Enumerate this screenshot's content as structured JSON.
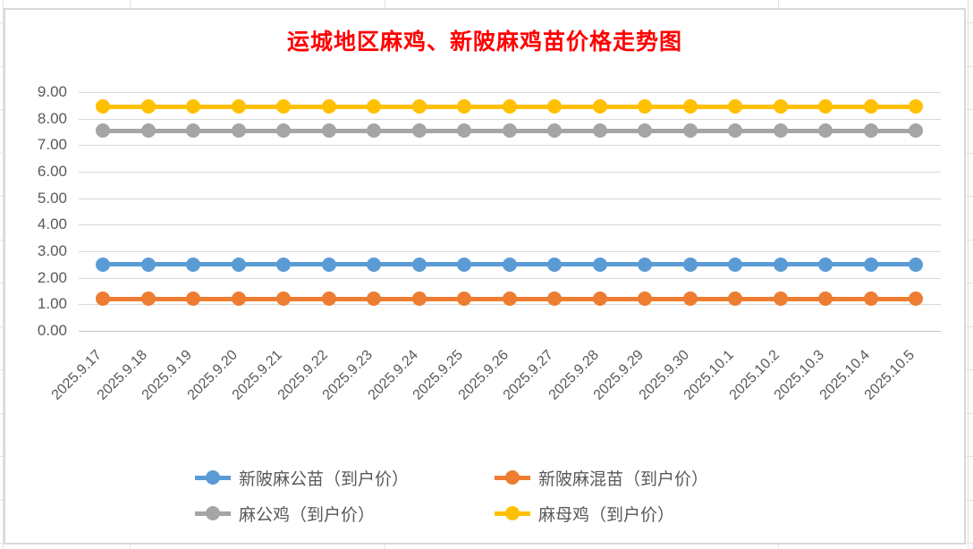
{
  "title": {
    "text": "运城地区麻鸡、新陂麻鸡苗价格走势图",
    "color": "#FF0000"
  },
  "chart_data": {
    "type": "line",
    "title": "运城地区麻鸡、新陂麻鸡苗价格走势图",
    "categories": [
      "2025.9.17",
      "2025.9.18",
      "2025.9.19",
      "2025.9.20",
      "2025.9.21",
      "2025.9.22",
      "2025.9.23",
      "2025.9.24",
      "2025.9.25",
      "2025.9.26",
      "2025.9.27",
      "2025.9.28",
      "2025.9.29",
      "2025.9.30",
      "2025.10.1",
      "2025.10.2",
      "2025.10.3",
      "2025.10.4",
      "2025.10.5"
    ],
    "series": [
      {
        "name": "新陂麻公苗（到户价）",
        "color": "#5B9BD5",
        "values": [
          2.5,
          2.5,
          2.5,
          2.5,
          2.5,
          2.5,
          2.5,
          2.5,
          2.5,
          2.5,
          2.5,
          2.5,
          2.5,
          2.5,
          2.5,
          2.5,
          2.5,
          2.5,
          2.5
        ]
      },
      {
        "name": "新陂麻混苗（到户价）",
        "color": "#ED7D31",
        "values": [
          1.2,
          1.2,
          1.2,
          1.2,
          1.2,
          1.2,
          1.2,
          1.2,
          1.2,
          1.2,
          1.2,
          1.2,
          1.2,
          1.2,
          1.2,
          1.2,
          1.2,
          1.2,
          1.2
        ]
      },
      {
        "name": "麻公鸡（到户价）",
        "color": "#A5A5A5",
        "values": [
          7.55,
          7.55,
          7.55,
          7.55,
          7.55,
          7.55,
          7.55,
          7.55,
          7.55,
          7.55,
          7.55,
          7.55,
          7.55,
          7.55,
          7.55,
          7.55,
          7.55,
          7.55,
          7.55
        ]
      },
      {
        "name": "麻母鸡（到户价）",
        "color": "#FFC000",
        "values": [
          8.45,
          8.45,
          8.45,
          8.45,
          8.45,
          8.45,
          8.45,
          8.45,
          8.45,
          8.45,
          8.45,
          8.45,
          8.45,
          8.45,
          8.45,
          8.45,
          8.45,
          8.45,
          8.45
        ]
      }
    ],
    "xlabel": "",
    "ylabel": "",
    "ylim": [
      0,
      9
    ],
    "ytick_step": 1,
    "yticks": [
      "9.00",
      "8.00",
      "7.00",
      "6.00",
      "5.00",
      "4.00",
      "3.00",
      "2.00",
      "1.00",
      "0.00"
    ],
    "grid": true,
    "legend_position": "bottom",
    "legend_rows": [
      [
        "新陂麻公苗（到户价）",
        "新陂麻混苗（到户价）"
      ],
      [
        "麻公鸡（到户价）",
        "麻母鸡（到户价）"
      ]
    ]
  },
  "colors": {
    "title": "#FF0000",
    "axis_text": "#595959",
    "gridline": "#D9D9D9",
    "series_blue": "#5B9BD5",
    "series_orange": "#ED7D31",
    "series_gray": "#A5A5A5",
    "series_yellow": "#FFC000"
  }
}
